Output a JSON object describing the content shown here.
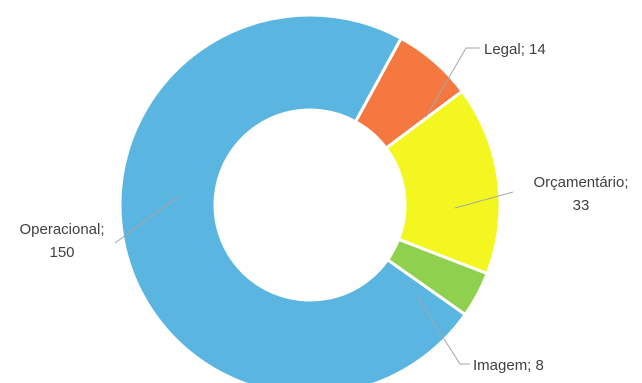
{
  "chart_data": {
    "type": "pie",
    "donut": true,
    "title": "",
    "legend": "none",
    "slices": [
      {
        "label": "Legal",
        "value": 14,
        "color": "#f4783f",
        "label_text": [
          "Legal; 14"
        ]
      },
      {
        "label": "Orçamentário",
        "value": 33,
        "color": "#f3f71f",
        "label_text": [
          "Orçamentário;",
          "33"
        ]
      },
      {
        "label": "Imagem",
        "value": 8,
        "color": "#8fd14f",
        "label_text": [
          "Imagem; 8"
        ]
      },
      {
        "label": "Operacional",
        "value": 150,
        "color": "#5ab6e0",
        "label_text": [
          "Operacional;",
          "150"
        ]
      }
    ]
  }
}
